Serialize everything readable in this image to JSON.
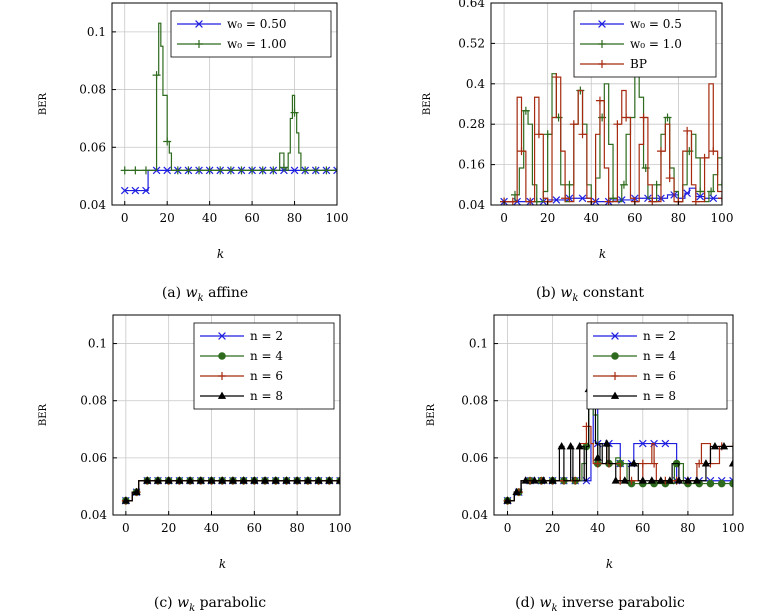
{
  "colors": {
    "blue": "#1f1fe0",
    "green": "#2e6b1e",
    "red": "#a52a0f",
    "black": "#000000",
    "grid": "#c8c8c8"
  },
  "chart_data": [
    {
      "type": "line",
      "caption": {
        "label": "(a)",
        "var": "w",
        "sub": "k",
        "rest": "affine"
      },
      "xlabel": "k",
      "ylabel": "BER",
      "xlim": [
        -6,
        100
      ],
      "ylim": [
        0.04,
        0.11
      ],
      "xticks": [
        0,
        20,
        40,
        60,
        80,
        100
      ],
      "yticks": [
        0.04,
        0.06,
        0.08,
        0.1
      ],
      "ytick_labels": [
        "0.04",
        "0.06",
        "0.08",
        "0.1"
      ],
      "legend": "top-right",
      "series": [
        {
          "name": "w₀ = 0.50",
          "color": "blue",
          "marker": "x",
          "markevery": 5,
          "x": [
            0,
            5,
            10,
            11,
            13,
            100
          ],
          "y": [
            0.045,
            0.045,
            0.045,
            0.052,
            0.052,
            0.052
          ]
        },
        {
          "name": "w₀ = 1.00",
          "color": "green",
          "marker": "+",
          "markevery": 5,
          "x": [
            0,
            12,
            15,
            16,
            17,
            18,
            19,
            20,
            21,
            22,
            23,
            70,
            72,
            73,
            74,
            75,
            76,
            77,
            78,
            79,
            80,
            81,
            82,
            83,
            84,
            100
          ],
          "y": [
            0.052,
            0.052,
            0.085,
            0.103,
            0.095,
            0.078,
            0.078,
            0.062,
            0.058,
            0.052,
            0.052,
            0.052,
            0.052,
            0.058,
            0.058,
            0.053,
            0.052,
            0.058,
            0.07,
            0.078,
            0.072,
            0.065,
            0.058,
            0.052,
            0.052,
            0.052
          ]
        }
      ]
    },
    {
      "type": "line",
      "caption": {
        "label": "(b)",
        "var": "w",
        "sub": "k",
        "rest": "constant"
      },
      "xlabel": "k",
      "ylabel": "BER",
      "xlim": [
        -6,
        100
      ],
      "ylim": [
        0.04,
        0.64
      ],
      "xticks": [
        0,
        20,
        40,
        60,
        80,
        100
      ],
      "yticks": [
        0.04,
        0.16,
        0.28,
        0.4,
        0.52,
        0.64
      ],
      "ytick_labels": [
        "0.04",
        "0.16",
        "0.28",
        "0.4",
        "0.52",
        "0.64"
      ],
      "legend": "top-right",
      "series": [
        {
          "name": "w₀ = 0.5",
          "color": "blue",
          "marker": "x",
          "markevery": 6,
          "x": [
            0,
            10,
            20,
            30,
            40,
            50,
            60,
            70,
            75,
            80,
            83,
            85,
            88,
            92,
            100
          ],
          "y": [
            0.05,
            0.05,
            0.055,
            0.06,
            0.05,
            0.055,
            0.06,
            0.06,
            0.07,
            0.06,
            0.075,
            0.09,
            0.065,
            0.06,
            0.05
          ]
        },
        {
          "name": "w₀ = 1.0",
          "color": "green",
          "marker": "+",
          "markevery": 5,
          "x": [
            0,
            3,
            5,
            7,
            9,
            11,
            13,
            15,
            18,
            20,
            22,
            24,
            26,
            28,
            30,
            32,
            34,
            36,
            38,
            40,
            42,
            44,
            46,
            48,
            50,
            52,
            54,
            56,
            58,
            60,
            62,
            64,
            66,
            68,
            70,
            72,
            74,
            76,
            78,
            80,
            82,
            84,
            86,
            88,
            90,
            92,
            94,
            96,
            98,
            100
          ],
          "y": [
            0.05,
            0.05,
            0.07,
            0.15,
            0.32,
            0.28,
            0.1,
            0.05,
            0.08,
            0.25,
            0.43,
            0.3,
            0.1,
            0.05,
            0.1,
            0.28,
            0.38,
            0.28,
            0.1,
            0.05,
            0.12,
            0.3,
            0.4,
            0.22,
            0.06,
            0.05,
            0.1,
            0.25,
            0.3,
            0.44,
            0.36,
            0.15,
            0.06,
            0.05,
            0.1,
            0.25,
            0.3,
            0.15,
            0.08,
            0.05,
            0.1,
            0.2,
            0.25,
            0.18,
            0.08,
            0.05,
            0.08,
            0.13,
            0.18,
            0.1
          ]
        },
        {
          "name": "BP",
          "color": "red",
          "marker": "+",
          "markevery": 4,
          "x": [
            0,
            2,
            4,
            6,
            8,
            10,
            12,
            14,
            16,
            18,
            20,
            22,
            24,
            26,
            28,
            30,
            32,
            34,
            36,
            38,
            40,
            42,
            44,
            46,
            48,
            50,
            52,
            54,
            56,
            58,
            60,
            62,
            64,
            66,
            68,
            70,
            72,
            74,
            76,
            78,
            80,
            82,
            84,
            86,
            88,
            90,
            92,
            94,
            96,
            98,
            100
          ],
          "y": [
            0.05,
            0.05,
            0.05,
            0.36,
            0.2,
            0.05,
            0.05,
            0.36,
            0.25,
            0.06,
            0.05,
            0.3,
            0.42,
            0.2,
            0.06,
            0.05,
            0.28,
            0.38,
            0.25,
            0.06,
            0.05,
            0.25,
            0.35,
            0.15,
            0.05,
            0.05,
            0.28,
            0.38,
            0.3,
            0.06,
            0.05,
            0.22,
            0.3,
            0.1,
            0.05,
            0.05,
            0.2,
            0.28,
            0.12,
            0.05,
            0.05,
            0.2,
            0.26,
            0.1,
            0.05,
            0.05,
            0.18,
            0.4,
            0.2,
            0.08,
            0.06
          ]
        }
      ]
    },
    {
      "type": "line",
      "caption": {
        "label": "(c)",
        "var": "w",
        "sub": "k",
        "rest": "parabolic"
      },
      "xlabel": "k",
      "ylabel": "BER",
      "xlim": [
        -6,
        100
      ],
      "ylim": [
        0.04,
        0.11
      ],
      "xticks": [
        0,
        20,
        40,
        60,
        80,
        100
      ],
      "yticks": [
        0.04,
        0.06,
        0.08,
        0.1
      ],
      "ytick_labels": [
        "0.04",
        "0.06",
        "0.08",
        "0.1"
      ],
      "legend": "top-right",
      "series": [
        {
          "name": "n = 2",
          "color": "blue",
          "marker": "x",
          "markevery": 5,
          "x": [
            0,
            2,
            3,
            5,
            6,
            100
          ],
          "y": [
            0.045,
            0.045,
            0.048,
            0.048,
            0.052,
            0.052
          ]
        },
        {
          "name": "n = 4",
          "color": "green",
          "marker": "circle",
          "markevery": 5,
          "x": [
            0,
            2,
            3,
            5,
            6,
            100
          ],
          "y": [
            0.045,
            0.045,
            0.048,
            0.048,
            0.052,
            0.052
          ]
        },
        {
          "name": "n = 6",
          "color": "red",
          "marker": "+",
          "markevery": 5,
          "x": [
            0,
            2,
            3,
            5,
            6,
            100
          ],
          "y": [
            0.045,
            0.045,
            0.048,
            0.048,
            0.052,
            0.052
          ]
        },
        {
          "name": "n = 8",
          "color": "black",
          "marker": "triangle",
          "markevery": 5,
          "x": [
            0,
            2,
            3,
            5,
            6,
            100
          ],
          "y": [
            0.045,
            0.045,
            0.048,
            0.048,
            0.052,
            0.052
          ]
        }
      ]
    },
    {
      "type": "line",
      "caption": {
        "label": "(d)",
        "var": "w",
        "sub": "k",
        "rest": "inverse parabolic"
      },
      "xlabel": "k",
      "ylabel": "BER",
      "xlim": [
        -6,
        100
      ],
      "ylim": [
        0.04,
        0.11
      ],
      "xticks": [
        0,
        20,
        40,
        60,
        80,
        100
      ],
      "yticks": [
        0.04,
        0.06,
        0.08,
        0.1
      ],
      "ytick_labels": [
        "0.04",
        "0.06",
        "0.08",
        "0.1"
      ],
      "legend": "top-right",
      "series": [
        {
          "name": "n = 2",
          "color": "blue",
          "marker": "x",
          "markevery": 5,
          "x": [
            0,
            2,
            3,
            5,
            6,
            36,
            37,
            38,
            39,
            40,
            45,
            50,
            55,
            56,
            74,
            75,
            100
          ],
          "y": [
            0.045,
            0.045,
            0.048,
            0.048,
            0.052,
            0.052,
            0.065,
            0.08,
            0.096,
            0.065,
            0.065,
            0.058,
            0.058,
            0.065,
            0.065,
            0.052,
            0.052
          ]
        },
        {
          "name": "n = 4",
          "color": "green",
          "marker": "circle",
          "markevery": 5,
          "x": [
            0,
            2,
            3,
            5,
            6,
            30,
            33,
            35,
            36,
            37,
            38,
            40,
            42,
            44,
            45,
            48,
            50,
            52,
            53,
            54,
            56,
            58,
            60,
            62,
            64,
            66,
            68,
            70,
            72,
            74,
            75,
            76,
            77,
            78,
            80,
            82,
            84,
            86,
            88,
            90,
            92,
            94,
            96,
            98,
            100
          ],
          "y": [
            0.045,
            0.045,
            0.048,
            0.048,
            0.052,
            0.052,
            0.058,
            0.064,
            0.082,
            0.09,
            0.075,
            0.058,
            0.058,
            0.064,
            0.058,
            0.06,
            0.058,
            0.058,
            0.051,
            0.051,
            0.051,
            0.051,
            0.051,
            0.051,
            0.051,
            0.051,
            0.051,
            0.051,
            0.051,
            0.058,
            0.058,
            0.058,
            0.058,
            0.051,
            0.051,
            0.051,
            0.051,
            0.051,
            0.051,
            0.051,
            0.051,
            0.051,
            0.051,
            0.051,
            0.051
          ]
        },
        {
          "name": "n = 6",
          "color": "red",
          "marker": "+",
          "markevery": 5,
          "x": [
            0,
            2,
            3,
            5,
            6,
            30,
            32,
            34,
            35,
            36,
            37,
            38,
            40,
            44,
            45,
            48,
            50,
            54,
            56,
            58,
            60,
            62,
            64,
            65,
            66,
            70,
            72,
            74,
            76,
            78,
            80,
            82,
            84,
            86,
            88,
            90,
            92,
            94,
            96,
            98,
            100
          ],
          "y": [
            0.045,
            0.045,
            0.048,
            0.048,
            0.052,
            0.052,
            0.065,
            0.065,
            0.071,
            0.071,
            0.065,
            0.058,
            0.058,
            0.065,
            0.058,
            0.058,
            0.052,
            0.052,
            0.052,
            0.052,
            0.058,
            0.058,
            0.065,
            0.058,
            0.052,
            0.052,
            0.052,
            0.052,
            0.052,
            0.052,
            0.052,
            0.052,
            0.058,
            0.065,
            0.065,
            0.058,
            0.058,
            0.064,
            0.064,
            0.064,
            0.064
          ]
        },
        {
          "name": "n = 8",
          "color": "black",
          "marker": "triangle",
          "markevery": 4,
          "x": [
            0,
            2,
            3,
            5,
            6,
            22,
            23,
            24,
            25,
            27,
            28,
            29,
            30,
            32,
            34,
            35,
            36,
            37,
            38,
            39,
            40,
            41,
            42,
            44,
            45,
            46,
            48,
            50,
            52,
            54,
            56,
            58,
            60,
            62,
            64,
            66,
            68,
            70,
            72,
            73,
            74,
            76,
            78,
            80,
            82,
            84,
            86,
            88,
            90,
            92,
            94,
            96,
            98,
            100
          ],
          "y": [
            0.045,
            0.045,
            0.048,
            0.048,
            0.052,
            0.052,
            0.064,
            0.064,
            0.052,
            0.052,
            0.064,
            0.052,
            0.052,
            0.064,
            0.052,
            0.064,
            0.084,
            0.09,
            0.083,
            0.065,
            0.06,
            0.065,
            0.058,
            0.065,
            0.058,
            0.058,
            0.052,
            0.052,
            0.052,
            0.058,
            0.058,
            0.052,
            0.052,
            0.052,
            0.052,
            0.052,
            0.052,
            0.052,
            0.052,
            0.058,
            0.058,
            0.052,
            0.052,
            0.052,
            0.052,
            0.052,
            0.052,
            0.058,
            0.064,
            0.064,
            0.064,
            0.064,
            0.064,
            0.058
          ]
        }
      ]
    }
  ]
}
